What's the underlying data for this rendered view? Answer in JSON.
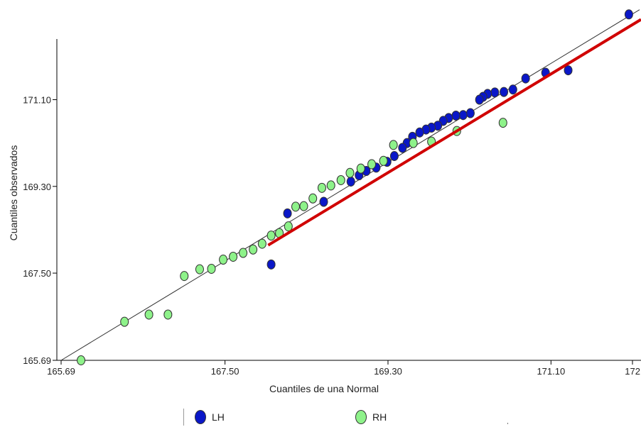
{
  "chart_data": {
    "type": "scatter",
    "xlabel": "Cuantiles de una Normal",
    "ylabel": "Cuantiles observados",
    "xlim": [
      165.69,
      172.0
    ],
    "ylim": [
      165.69,
      172.87
    ],
    "x_ticks": [
      "165.69",
      "167.50",
      "169.30",
      "171.10",
      "172"
    ],
    "y_ticks": [
      "165.69",
      "167.50",
      "169.30",
      "171.10"
    ],
    "x_tick_values": [
      165.69,
      167.5,
      169.3,
      171.1,
      172.0
    ],
    "y_tick_values": [
      165.69,
      167.5,
      169.3,
      171.1
    ],
    "grid": false,
    "legend_position": "bottom-center",
    "series": [
      {
        "name": "LH",
        "color": "#0a17c8",
        "points": [
          [
            171.96,
            172.87
          ],
          [
            171.29,
            171.71
          ],
          [
            171.04,
            171.66
          ],
          [
            170.82,
            171.54
          ],
          [
            170.68,
            171.31
          ],
          [
            170.58,
            171.26
          ],
          [
            170.48,
            171.25
          ],
          [
            170.4,
            171.22
          ],
          [
            170.35,
            171.16
          ],
          [
            170.31,
            171.1
          ],
          [
            170.21,
            170.82
          ],
          [
            170.13,
            170.78
          ],
          [
            170.05,
            170.77
          ],
          [
            169.97,
            170.72
          ],
          [
            169.91,
            170.66
          ],
          [
            169.85,
            170.56
          ],
          [
            169.78,
            170.52
          ],
          [
            169.72,
            170.48
          ],
          [
            169.65,
            170.42
          ],
          [
            169.57,
            170.33
          ],
          [
            169.51,
            170.2
          ],
          [
            169.46,
            170.1
          ],
          [
            169.37,
            169.93
          ],
          [
            169.29,
            169.81
          ],
          [
            169.17,
            169.69
          ],
          [
            169.06,
            169.62
          ],
          [
            168.98,
            169.53
          ],
          [
            168.89,
            169.4
          ],
          [
            168.59,
            168.98
          ],
          [
            168.19,
            168.74
          ],
          [
            168.01,
            167.68
          ]
        ]
      },
      {
        "name": "RH",
        "color": "#8ef28a",
        "points": [
          [
            165.91,
            165.69
          ],
          [
            166.39,
            166.49
          ],
          [
            166.66,
            166.64
          ],
          [
            166.87,
            166.64
          ],
          [
            167.05,
            167.44
          ],
          [
            167.22,
            167.58
          ],
          [
            167.35,
            167.59
          ],
          [
            167.48,
            167.78
          ],
          [
            167.59,
            167.84
          ],
          [
            167.7,
            167.92
          ],
          [
            167.81,
            167.99
          ],
          [
            167.91,
            168.11
          ],
          [
            168.01,
            168.28
          ],
          [
            168.1,
            168.33
          ],
          [
            168.2,
            168.47
          ],
          [
            168.28,
            168.88
          ],
          [
            168.37,
            168.89
          ],
          [
            168.47,
            169.05
          ],
          [
            168.57,
            169.27
          ],
          [
            168.67,
            169.32
          ],
          [
            168.78,
            169.43
          ],
          [
            168.88,
            169.58
          ],
          [
            169.0,
            169.67
          ],
          [
            169.12,
            169.76
          ],
          [
            169.25,
            169.83
          ],
          [
            169.36,
            170.16
          ],
          [
            169.58,
            170.2
          ],
          [
            169.78,
            170.23
          ],
          [
            170.06,
            170.45
          ],
          [
            170.57,
            170.62
          ]
        ]
      }
    ],
    "reference_line": {
      "points": [
        [
          165.69,
          165.69
        ],
        [
          172.0,
          172.85
        ]
      ],
      "color": "#333333"
    },
    "fitted_line": {
      "points": [
        [
          168.0,
          168.08
        ],
        [
          172.0,
          172.72
        ]
      ],
      "color": "#d00000"
    }
  }
}
